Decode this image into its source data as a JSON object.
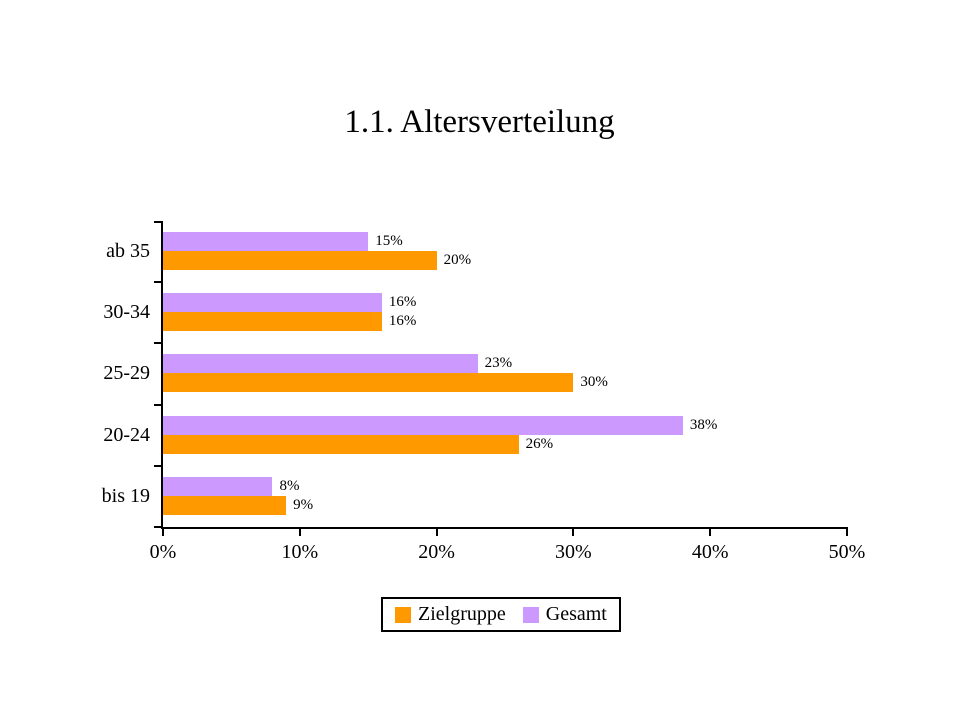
{
  "chart_data": {
    "type": "bar",
    "orientation": "horizontal",
    "title": "1.1. Altersverteilung",
    "categories": [
      "ab 35",
      "30-34",
      "25-29",
      "20-24",
      "bis 19"
    ],
    "series": [
      {
        "name": "Zielgruppe",
        "color": "#FF9900",
        "values": [
          20,
          16,
          30,
          26,
          9
        ]
      },
      {
        "name": "Gesamt",
        "color": "#CC99FF",
        "values": [
          15,
          16,
          23,
          38,
          8
        ]
      }
    ],
    "bar_row_order_top_to_bottom": [
      "Gesamt",
      "Zielgruppe"
    ],
    "value_suffix": "%",
    "data_labels": true,
    "x_ticks": [
      "0%",
      "10%",
      "20%",
      "30%",
      "40%",
      "50%"
    ],
    "xlim": [
      0,
      50
    ],
    "grid": false,
    "legend_position": "bottom",
    "axis_color": "#000000",
    "background": "#FFFFFF"
  }
}
